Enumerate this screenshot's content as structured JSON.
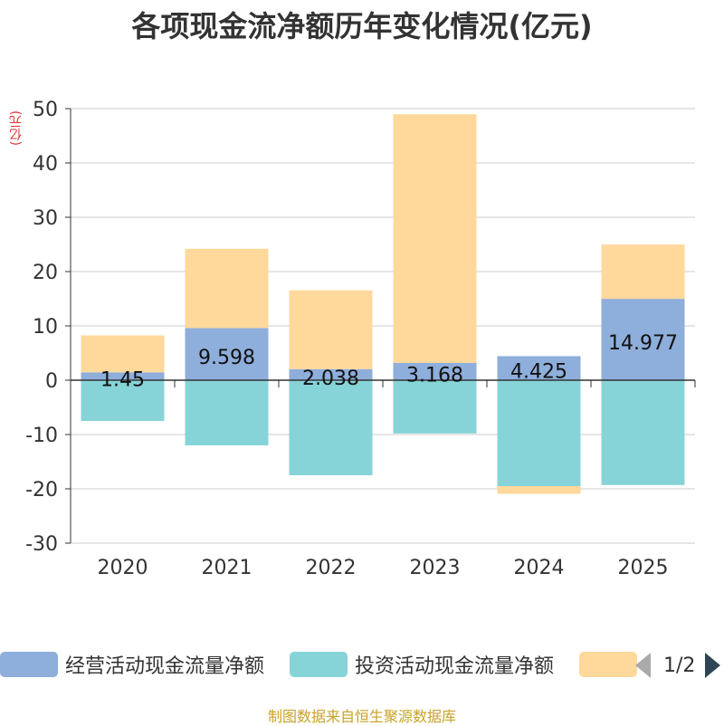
{
  "title": "各项现金流净额历年变化情况(亿元)",
  "unit_label": "(亿元)",
  "source_note": "制图数据来自恒生聚源数据库",
  "legend": {
    "items": [
      {
        "label": "经营活动现金流量净额",
        "color": "#8eaedb"
      },
      {
        "label": "投资活动现金流量净额",
        "color": "#86d4d8"
      },
      {
        "label": "",
        "color": "#ffd89b"
      }
    ],
    "page_text": "1/2"
  },
  "chart_data": {
    "type": "bar",
    "stacked": true,
    "categories": [
      "2020",
      "2021",
      "2022",
      "2023",
      "2024",
      "2025"
    ],
    "ylim": [
      -30,
      50
    ],
    "yticks": [
      50,
      40,
      30,
      20,
      10,
      0,
      -10,
      -20,
      -30
    ],
    "ylabel": "(亿元)",
    "xlabel": "",
    "grid": true,
    "series": [
      {
        "name": "经营活动现金流量净额",
        "color": "#8eaedb",
        "values": [
          1.45,
          9.598,
          2.038,
          3.168,
          4.425,
          14.977
        ],
        "labels": [
          "1.45",
          "9.598",
          "2.038",
          "3.168",
          "4.425",
          "14.977"
        ]
      },
      {
        "name": "投资活动现金流量净额",
        "color": "#86d4d8",
        "values": [
          -7.5,
          -12.0,
          -17.5,
          -9.8,
          -19.5,
          -19.3
        ]
      },
      {
        "name": "",
        "color": "#ffd89b",
        "values": [
          6.8,
          14.6,
          14.5,
          45.8,
          -1.4,
          10.0
        ]
      }
    ]
  }
}
